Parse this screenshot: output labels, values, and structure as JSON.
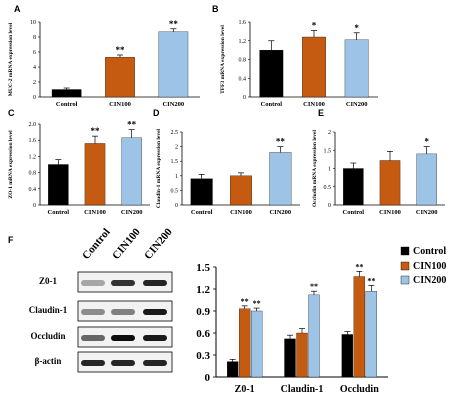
{
  "colors": {
    "control": "#000000",
    "cin100": "#c55a11",
    "cin200": "#9dc3e6"
  },
  "chart_data": [
    {
      "panel": "A",
      "type": "bar",
      "categories": [
        "Control",
        "CIN100",
        "CIN200"
      ],
      "values": [
        1.0,
        5.3,
        8.7
      ],
      "errors": [
        0.2,
        0.3,
        0.4
      ],
      "significance": [
        "",
        "**",
        "**"
      ],
      "ylabel": "MUC-2 mRNA expression level",
      "ylim": [
        0,
        10
      ],
      "yticks": [
        "0",
        "2",
        "4",
        "6",
        "8",
        "10"
      ]
    },
    {
      "panel": "B",
      "type": "bar",
      "categories": [
        "Control",
        "CIN100",
        "CIN200"
      ],
      "values": [
        1.0,
        1.28,
        1.22
      ],
      "errors": [
        0.2,
        0.14,
        0.15
      ],
      "significance": [
        "",
        "*",
        "*"
      ],
      "ylabel": "TFF3 mRNA expression level",
      "ylim": [
        0,
        1.6
      ],
      "yticks": [
        "0",
        "0.4",
        "0.8",
        "1.2",
        "1.6"
      ]
    },
    {
      "panel": "C",
      "type": "bar",
      "categories": [
        "Control",
        "CIN100",
        "CIN200"
      ],
      "values": [
        1.0,
        1.52,
        1.66
      ],
      "errors": [
        0.12,
        0.18,
        0.2
      ],
      "significance": [
        "",
        "**",
        "**"
      ],
      "ylabel": "ZO-1 mRNA expression level",
      "ylim": [
        0,
        2.0
      ],
      "yticks": [
        "0",
        "0.4",
        "0.8",
        "1.2",
        "1.6",
        "2.0"
      ]
    },
    {
      "panel": "D",
      "type": "bar",
      "categories": [
        "Control",
        "CIN100",
        "CIN200"
      ],
      "values": [
        0.9,
        1.0,
        1.8
      ],
      "errors": [
        0.15,
        0.1,
        0.2
      ],
      "significance": [
        "",
        "",
        "**"
      ],
      "ylabel": "Claudin-1 mRNA expression level",
      "ylim": [
        0,
        2.5
      ],
      "yticks": [
        "0",
        "0.5",
        "1",
        "1.5",
        "2",
        "2.5"
      ]
    },
    {
      "panel": "E",
      "type": "bar",
      "categories": [
        "Control",
        "CIN100",
        "CIN200"
      ],
      "values": [
        1.0,
        1.22,
        1.4
      ],
      "errors": [
        0.15,
        0.25,
        0.2
      ],
      "significance": [
        "",
        "",
        "*"
      ],
      "ylabel": "Occludin mRNA expression level",
      "ylim": [
        0,
        2.0
      ],
      "yticks": [
        "0",
        "0.5",
        "1",
        "1.5",
        "2"
      ]
    },
    {
      "panel": "F",
      "type": "bar",
      "categories": [
        "Z0-1",
        "Claudin-1",
        "Occludin"
      ],
      "series": [
        {
          "name": "Control",
          "values": [
            0.21,
            0.52,
            0.58
          ],
          "errors": [
            0.03,
            0.05,
            0.04
          ],
          "significance": [
            "",
            "",
            ""
          ]
        },
        {
          "name": "CIN100",
          "values": [
            0.93,
            0.6,
            1.37
          ],
          "errors": [
            0.04,
            0.06,
            0.07
          ],
          "significance": [
            "**",
            "",
            "**"
          ]
        },
        {
          "name": "CIN200",
          "values": [
            0.9,
            1.12,
            1.17
          ],
          "errors": [
            0.04,
            0.05,
            0.08
          ],
          "significance": [
            "**",
            "**",
            "**"
          ]
        }
      ],
      "ylim": [
        0,
        1.5
      ],
      "yticks": [
        "0",
        "0.3",
        "0.6",
        "0.9",
        "1.2",
        "1.5"
      ],
      "legend": "top-right"
    }
  ],
  "blot": {
    "panel": "F",
    "lanes": [
      "Control",
      "CIN100",
      "CIN200"
    ],
    "rows": [
      {
        "label": "Z0-1",
        "intensity": [
          0.35,
          0.8,
          0.85
        ]
      },
      {
        "label": "Claudin-1",
        "intensity": [
          0.45,
          0.5,
          0.9
        ]
      },
      {
        "label": "Occludin",
        "intensity": [
          0.6,
          0.95,
          0.9
        ]
      },
      {
        "label": "β-actin",
        "intensity": [
          0.85,
          0.85,
          0.85
        ]
      }
    ]
  }
}
